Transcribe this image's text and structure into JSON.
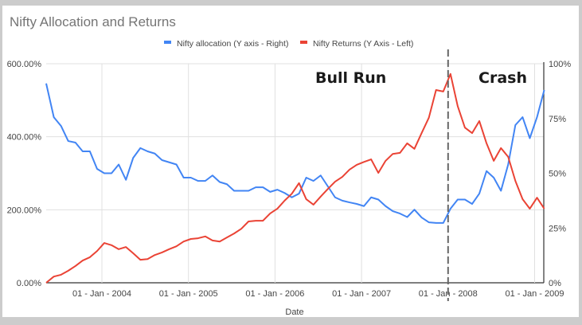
{
  "chart_data": {
    "type": "line",
    "title": "Nifty Allocation and Returns",
    "xlabel": "Date",
    "x_ticks": [
      "01 - Jan - 2004",
      "01 - Jan - 2005",
      "01 - Jan - 2006",
      "01 - Jan - 2007",
      "01 - Jan - 2008",
      "01 - Jan - 2009"
    ],
    "y_left_ticks": [
      "0.00%",
      "200.00%",
      "400.00%",
      "600.00%"
    ],
    "y_left_range": [
      0,
      600
    ],
    "y_right_ticks": [
      "0%",
      "25%",
      "50%",
      "75%",
      "100%"
    ],
    "y_right_range": [
      0,
      100
    ],
    "legend_position": "top",
    "grid": true,
    "x_start": "2003-05",
    "x_step": "monthly",
    "series": [
      {
        "name": "Nifty allocation (Y axis - Right)",
        "axis": "right",
        "color": "#4285f4",
        "values": [
          91,
          75.6,
          71.6,
          64.7,
          64,
          60,
          60,
          52,
          50,
          50,
          54,
          47,
          57,
          61.5,
          60,
          59,
          56,
          55,
          54,
          48,
          48,
          46.5,
          46.5,
          49,
          46,
          45,
          42,
          42,
          42,
          43.6,
          43.6,
          41.5,
          42.5,
          41,
          39,
          40.7,
          48,
          46.5,
          49,
          44,
          39,
          37.5,
          36.7,
          36,
          35,
          39,
          38,
          35,
          32.7,
          31.6,
          30,
          33.4,
          29.8,
          27.6,
          27.3,
          27.3,
          33.8,
          38,
          38,
          36,
          40.7,
          51,
          48,
          42,
          54,
          72,
          75.6,
          66,
          75.6,
          88
        ]
      },
      {
        "name": "Nifty Returns (Y Axis - Left)",
        "axis": "left",
        "color": "#ea4335",
        "values": [
          0,
          17,
          22,
          33,
          46,
          61,
          70,
          87,
          109,
          103,
          92,
          98,
          81,
          63,
          65,
          76,
          83,
          92,
          100,
          113,
          120,
          122,
          127,
          116,
          113,
          124,
          135,
          148,
          168,
          170,
          170,
          190,
          203,
          225,
          244,
          273,
          229,
          214,
          236,
          257,
          277,
          290,
          310,
          323,
          331,
          338,
          301,
          334,
          353,
          356,
          382,
          367,
          410,
          452,
          528,
          524,
          572,
          484,
          425,
          410,
          443,
          382,
          334,
          369,
          345,
          279,
          229,
          203,
          233,
          203
        ]
      }
    ],
    "annotations": [
      {
        "text": "Bull Run"
      },
      {
        "text": "Crash"
      }
    ],
    "marker_line_date": "01 - Jan - 2008"
  }
}
